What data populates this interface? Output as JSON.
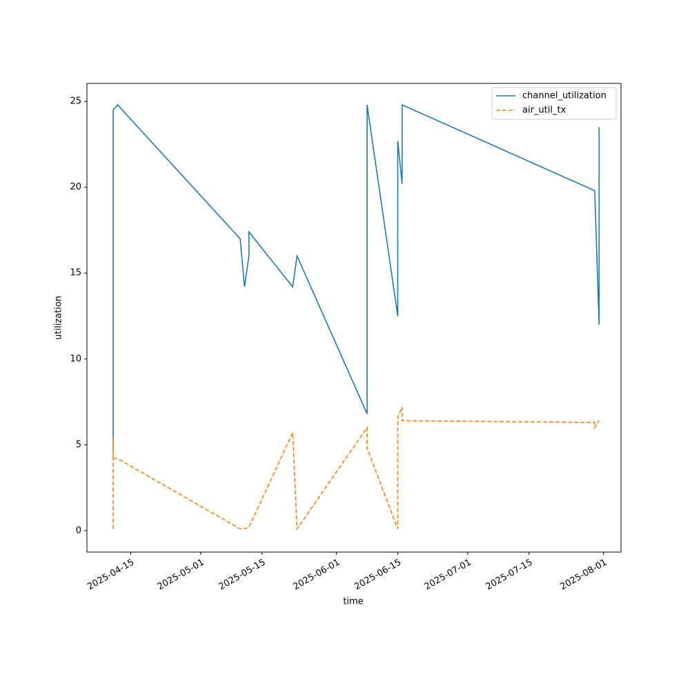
{
  "chart_data": {
    "type": "line",
    "x_label": "time",
    "y_label": "utilization",
    "xlim": [
      "2025-04-05",
      "2025-08-05"
    ],
    "xticks": [
      "2025-04-15",
      "2025-05-01",
      "2025-05-15",
      "2025-06-01",
      "2025-06-15",
      "2025-07-01",
      "2025-07-15",
      "2025-08-01"
    ],
    "ylim": [
      -1.25,
      26.05
    ],
    "yticks": [
      0,
      5,
      10,
      15,
      20,
      25
    ],
    "legend": "upper right",
    "series": [
      {
        "name": "channel_utilization",
        "color": "#1f77b4",
        "dash": "solid",
        "x": [
          "2025-04-11",
          "2025-04-11",
          "2025-04-11",
          "2025-04-12",
          "2025-05-10",
          "2025-05-11",
          "2025-05-12",
          "2025-05-12",
          "2025-05-22",
          "2025-05-23",
          "2025-06-08",
          "2025-06-08",
          "2025-06-15",
          "2025-06-15",
          "2025-06-15",
          "2025-06-16",
          "2025-06-16",
          "2025-07-30",
          "2025-07-31",
          "2025-07-31"
        ],
        "values": [
          4.7,
          18.8,
          24.5,
          24.8,
          17.0,
          14.2,
          16.0,
          17.4,
          14.2,
          16.0,
          6.8,
          24.8,
          12.5,
          22.5,
          22.7,
          20.2,
          24.8,
          19.8,
          12.0,
          23.5
        ]
      },
      {
        "name": "air_util_tx",
        "color": "#ff7f0e",
        "dash": "dashed",
        "x": [
          "2025-04-11",
          "2025-04-11",
          "2025-04-11",
          "2025-04-12",
          "2025-05-10",
          "2025-05-11",
          "2025-05-12",
          "2025-05-22",
          "2025-05-23",
          "2025-06-08",
          "2025-06-08",
          "2025-06-15",
          "2025-06-15",
          "2025-06-15",
          "2025-06-16",
          "2025-06-16",
          "2025-07-30",
          "2025-07-30",
          "2025-07-31"
        ],
        "values": [
          0.1,
          5.4,
          4.2,
          4.2,
          0.1,
          0.1,
          0.2,
          5.7,
          0.1,
          6.0,
          4.8,
          0.1,
          5.9,
          6.6,
          7.2,
          6.4,
          6.3,
          6.0,
          6.4
        ]
      }
    ]
  }
}
